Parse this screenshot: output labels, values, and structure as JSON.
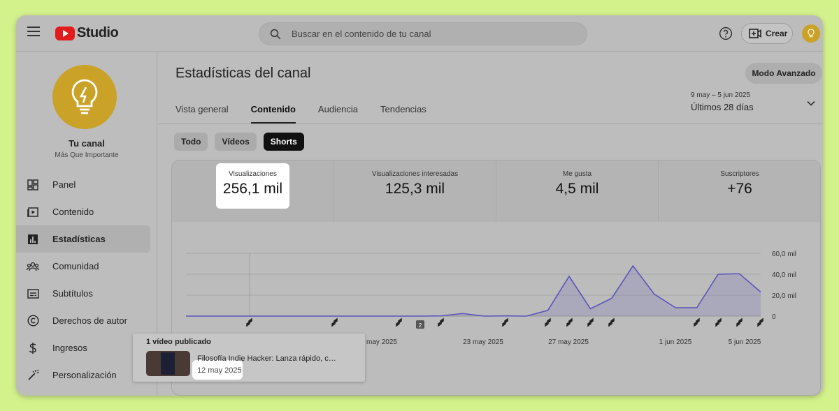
{
  "header": {
    "logo_text": "Studio",
    "search_placeholder": "Buscar en el contenido de tu canal",
    "create_label": "Crear"
  },
  "sidebar": {
    "channel_name": "Tu canal",
    "channel_sub": "Más Que Importante",
    "items": [
      {
        "label": "Panel",
        "icon": "dashboard-icon"
      },
      {
        "label": "Contenido",
        "icon": "content-icon"
      },
      {
        "label": "Estadísticas",
        "icon": "analytics-icon",
        "active": true
      },
      {
        "label": "Comunidad",
        "icon": "community-icon"
      },
      {
        "label": "Subtítulos",
        "icon": "subtitles-icon"
      },
      {
        "label": "Derechos de autor",
        "icon": "copyright-icon"
      },
      {
        "label": "Ingresos",
        "icon": "dollar-icon"
      },
      {
        "label": "Personalización",
        "icon": "magic-wand-icon"
      }
    ]
  },
  "main": {
    "title": "Estadísticas del canal",
    "advanced_label": "Modo Avanzado",
    "tabs": [
      "Vista general",
      "Contenido",
      "Audiencia",
      "Tendencias"
    ],
    "active_tab": "Contenido",
    "date_range_small": "9 may – 5 jun 2025",
    "date_range_big": "Últimos 28 días",
    "filters": [
      "Todo",
      "Vídeos",
      "Shorts"
    ],
    "active_filter": "Shorts",
    "metrics": [
      {
        "label": "Visualizaciones",
        "value": "256,1 mil"
      },
      {
        "label": "Visualizaciones interesadas",
        "value": "125,3 mil"
      },
      {
        "label": "Me gusta",
        "value": "4,5 mil"
      },
      {
        "label": "Suscriptores",
        "value": "+76"
      }
    ]
  },
  "chart_data": {
    "type": "area",
    "x_labels": [
      "may 2025",
      "23 may 2025",
      "27 may 2025",
      "1 jun 2025",
      "5 jun 2025"
    ],
    "y_ticks": [
      "60,0 mil",
      "40,0 mil",
      "20,0 mil",
      "0"
    ],
    "ylim": [
      0,
      60000
    ],
    "series": [
      {
        "values": [
          0,
          0,
          0,
          0,
          0,
          0,
          0,
          0,
          0,
          0,
          0,
          0,
          200,
          2500,
          0,
          200,
          0,
          5500,
          38000,
          7000,
          17000,
          48000,
          21000,
          8000,
          8000,
          40000,
          40500,
          23000
        ]
      }
    ],
    "color": "#5a55b8",
    "upload_marker_label": "2",
    "grid": true
  },
  "tooltip": {
    "title": "1 vídeo publicado",
    "video_title": "Filosofía Indie Hacker: Lanza rápido, co...",
    "video_date": "12 may 2025"
  }
}
